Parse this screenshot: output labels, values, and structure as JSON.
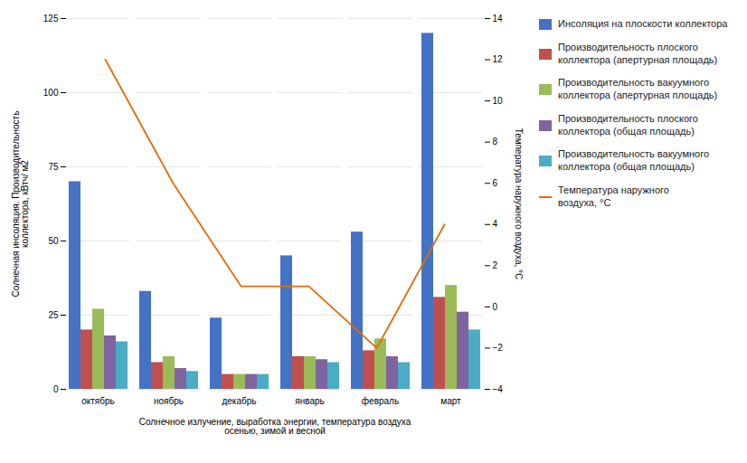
{
  "chart_data": {
    "type": "bar",
    "categories": [
      "октябрь",
      "ноябрь",
      "декабрь",
      "январь",
      "февраль",
      "март"
    ],
    "series": [
      {
        "name": "Инсоляция на плоскости коллектора",
        "color": "#4472C4",
        "values": [
          70,
          33,
          24,
          45,
          53,
          120
        ]
      },
      {
        "name": "Производительность плоского\nколлектора (апертурная площадь)",
        "color": "#C0504D",
        "values": [
          20,
          9,
          5,
          11,
          13,
          31
        ]
      },
      {
        "name": "Производительность вакуумного\nколлектора (апертурная площадь)",
        "color": "#9BBB59",
        "values": [
          27,
          11,
          5,
          11,
          17,
          35
        ]
      },
      {
        "name": "Производительность плоского\nколлектора (общая площадь)",
        "color": "#8064A2",
        "values": [
          18,
          7,
          5,
          10,
          11,
          26
        ]
      },
      {
        "name": "Производительность вакуумного\nколлектора (общая площадь)",
        "color": "#4BACC6",
        "values": [
          16,
          6,
          5,
          9,
          9,
          20
        ]
      },
      {
        "name": "Температура наружного\nвоздуха, °С",
        "type": "line",
        "axis": "y2",
        "color": "#E36C09",
        "values": [
          12,
          6,
          1,
          1,
          -2,
          4
        ]
      }
    ],
    "ylabel": "Солнечная инсоляция. Производительность\nколлектора, кВтч/ м2",
    "y2label": "Температура наружного воздуха, °С",
    "xlabel": "Солнечное излучение, выработка энергии, температура воздуха\nосенью, зимой и весной",
    "ylim": [
      0,
      125
    ],
    "yticks": [
      0,
      25,
      50,
      75,
      100,
      125
    ],
    "y2lim": [
      -4,
      14
    ],
    "y2ticks": [
      -4,
      -2,
      0,
      2,
      4,
      6,
      8,
      10,
      12,
      14
    ],
    "grid": true,
    "legend": "right"
  }
}
